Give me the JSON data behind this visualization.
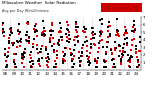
{
  "title": "Milwaukee Weather  Solar Radiation",
  "subtitle": "Avg per Day W/m2/minute",
  "background_color": "#ffffff",
  "plot_bg_color": "#ffffff",
  "grid_color": "#bbbbbb",
  "red_color": "#dd0000",
  "black_color": "#000000",
  "legend_box_color": "#cc0000",
  "ylim": [
    0,
    7
  ],
  "yticks": [
    1,
    2,
    3,
    4,
    5,
    6,
    7
  ],
  "n_years": 17,
  "n_months": 12,
  "years": [
    "08",
    "09",
    "10",
    "11",
    "12",
    "13",
    "14",
    "15",
    "16",
    "17",
    "18",
    "19",
    "20",
    "21",
    "22",
    "23",
    "24"
  ],
  "title_fontsize": 3.0,
  "subtitle_fontsize": 2.5,
  "tick_fontsize": 2.8,
  "marker_size": 0.8
}
